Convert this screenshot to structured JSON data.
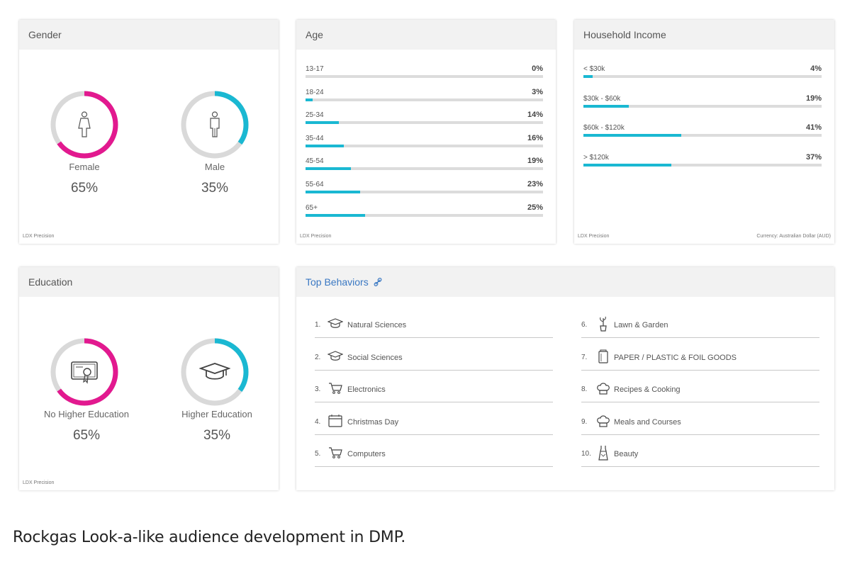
{
  "colors": {
    "pink": "#e2198f",
    "cyan": "#1ab8d2",
    "track": "#d9d9d9"
  },
  "gender": {
    "title": "Gender",
    "footnote": "LDX Precision",
    "items": [
      {
        "label": "Female",
        "value": "65%",
        "fraction": 0.65,
        "color": "#e2198f",
        "icon": "female-icon"
      },
      {
        "label": "Male",
        "value": "35%",
        "fraction": 0.35,
        "color": "#1ab8d2",
        "icon": "male-icon"
      }
    ]
  },
  "age": {
    "title": "Age",
    "footnote": "LDX Precision",
    "rows": [
      {
        "label": "13-17",
        "pct": "0%",
        "value": 0
      },
      {
        "label": "18-24",
        "pct": "3%",
        "value": 3
      },
      {
        "label": "25-34",
        "pct": "14%",
        "value": 14
      },
      {
        "label": "35-44",
        "pct": "16%",
        "value": 16
      },
      {
        "label": "45-54",
        "pct": "19%",
        "value": 19
      },
      {
        "label": "55-64",
        "pct": "23%",
        "value": 23
      },
      {
        "label": "65+",
        "pct": "25%",
        "value": 25
      }
    ]
  },
  "income": {
    "title": "Household Income",
    "footnote": "LDX Precision",
    "currency_note": "Currency: Australian Dollar (AUD)",
    "rows": [
      {
        "label": "< $30k",
        "pct": "4%",
        "value": 4
      },
      {
        "label": "$30k - $60k",
        "pct": "19%",
        "value": 19
      },
      {
        "label": "$60k - $120k",
        "pct": "41%",
        "value": 41
      },
      {
        "label": "> $120k",
        "pct": "37%",
        "value": 37
      }
    ]
  },
  "education": {
    "title": "Education",
    "footnote": "LDX Precision",
    "items": [
      {
        "label": "No Higher Education",
        "value": "65%",
        "fraction": 0.65,
        "color": "#e2198f",
        "icon": "certificate-icon"
      },
      {
        "label": "Higher Education",
        "value": "35%",
        "fraction": 0.35,
        "color": "#1ab8d2",
        "icon": "graduation-cap-icon"
      }
    ]
  },
  "behaviors": {
    "title": "Top Behaviors",
    "link_icon": "link-icon",
    "items": [
      {
        "num": "1.",
        "label": "Natural Sciences",
        "icon": "graduation-cap-icon"
      },
      {
        "num": "2.",
        "label": "Social Sciences",
        "icon": "graduation-cap-icon"
      },
      {
        "num": "3.",
        "label": "Electronics",
        "icon": "shopping-cart-icon"
      },
      {
        "num": "4.",
        "label": "Christmas Day",
        "icon": "calendar-icon"
      },
      {
        "num": "5.",
        "label": "Computers",
        "icon": "shopping-cart-icon"
      },
      {
        "num": "6.",
        "label": "Lawn & Garden",
        "icon": "plant-icon"
      },
      {
        "num": "7.",
        "label": "PAPER / PLASTIC & FOIL GOODS",
        "icon": "package-icon"
      },
      {
        "num": "8.",
        "label": "Recipes & Cooking",
        "icon": "chef-hat-icon"
      },
      {
        "num": "9.",
        "label": "Meals and Courses",
        "icon": "chef-hat-icon"
      },
      {
        "num": "10.",
        "label": "Beauty",
        "icon": "dress-icon"
      }
    ]
  },
  "caption": "Rockgas Look-a-like audience development in DMP."
}
